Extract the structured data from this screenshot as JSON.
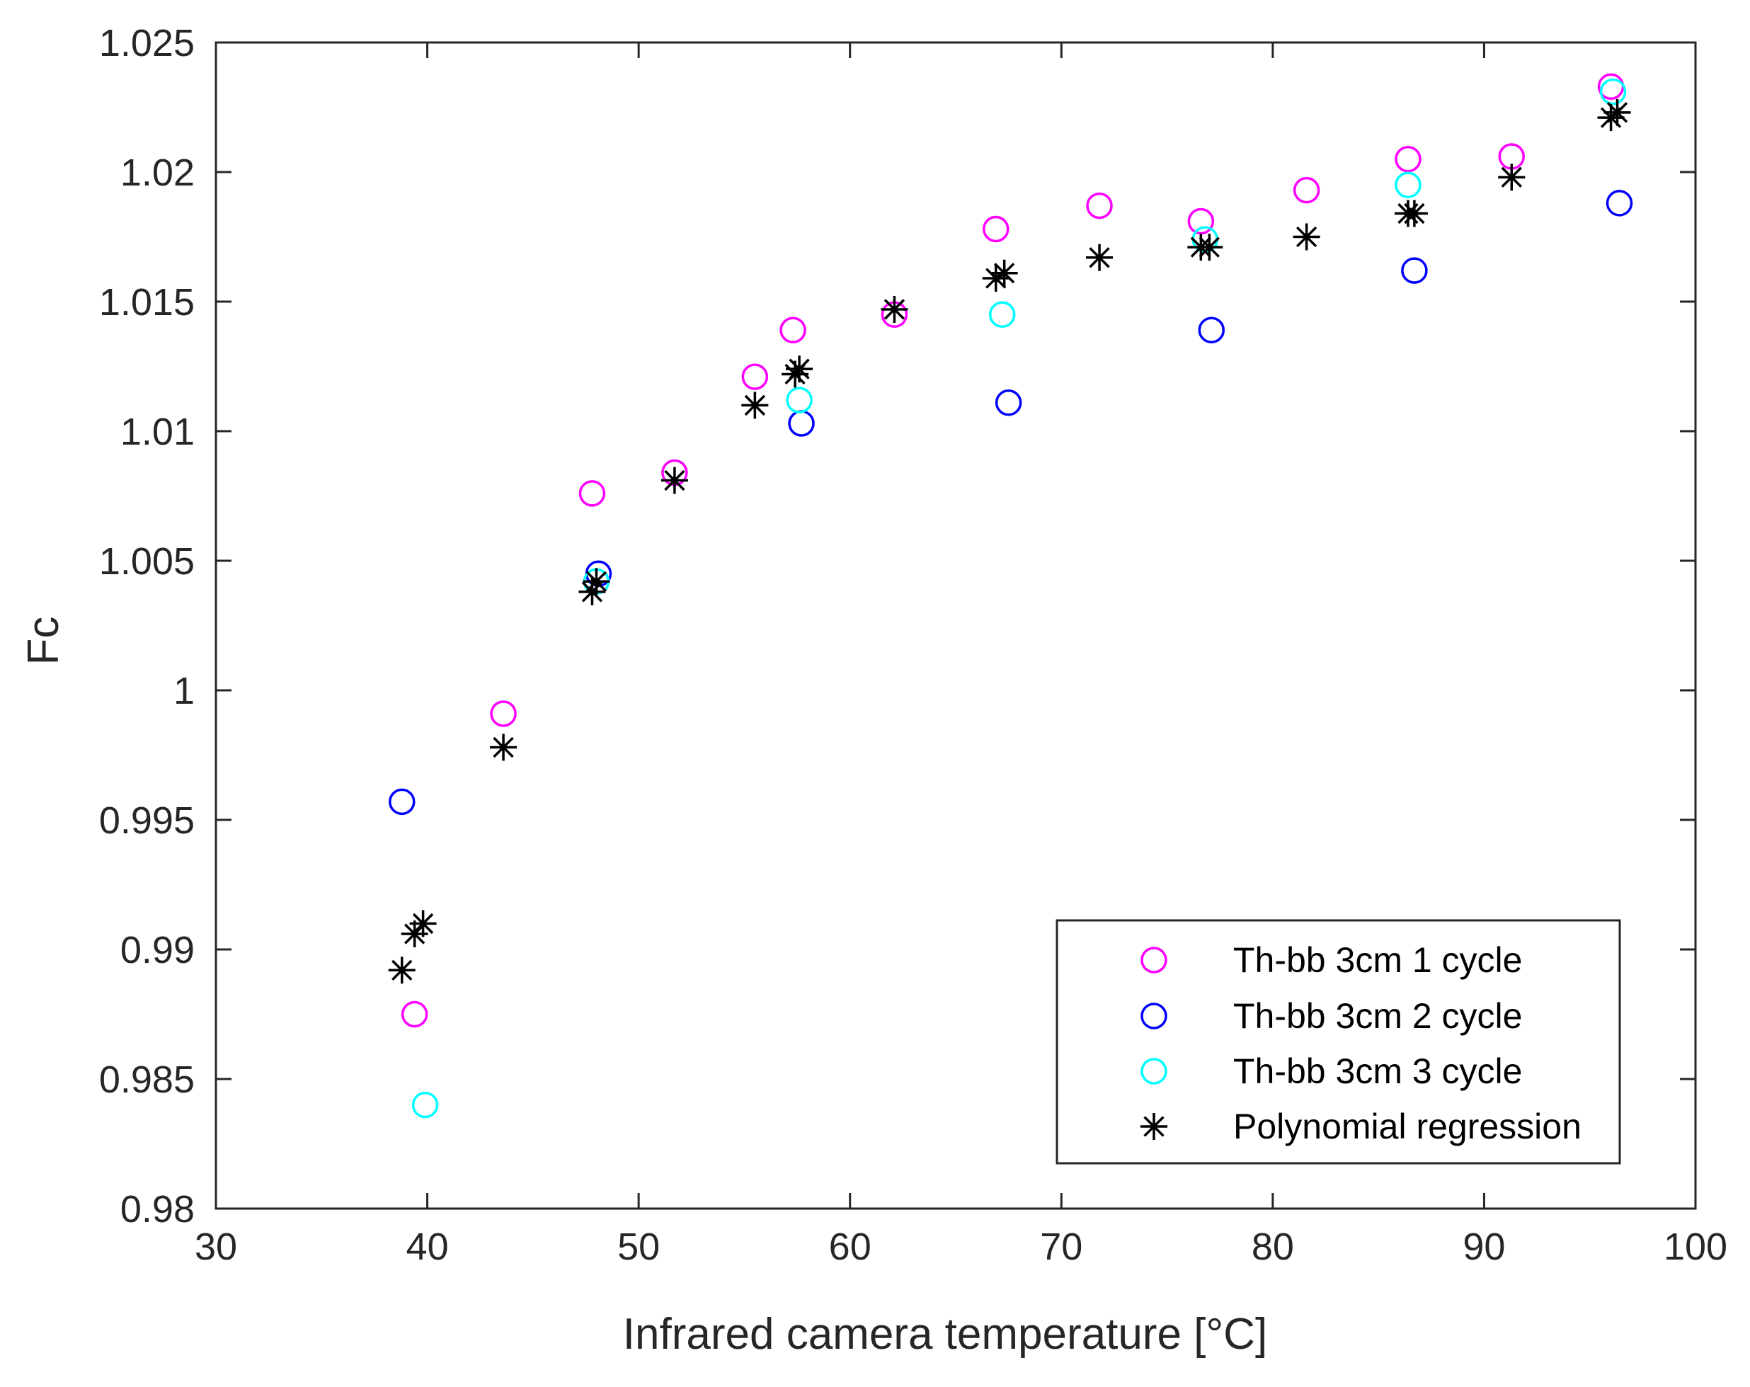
{
  "chart_data": {
    "type": "scatter",
    "xlabel": "Infrared camera temperature [°C]",
    "ylabel": "Fc",
    "xlim": [
      30,
      100
    ],
    "ylim": [
      0.98,
      1.025
    ],
    "xticks": [
      30,
      40,
      50,
      60,
      70,
      80,
      90,
      100
    ],
    "xtick_labels": [
      "30",
      "40",
      "50",
      "60",
      "70",
      "80",
      "90",
      "100"
    ],
    "yticks": [
      0.98,
      0.985,
      0.99,
      0.995,
      1.0,
      1.005,
      1.01,
      1.015,
      1.02,
      1.025
    ],
    "ytick_labels": [
      "0.98",
      "0.985",
      "0.99",
      "0.995",
      "1",
      "1.005",
      "1.01",
      "1.015",
      "1.02",
      "1.025"
    ],
    "grid": false,
    "legend_position": "bottom-right",
    "series": [
      {
        "name": "Th-bb 3cm 1 cycle",
        "marker": "circle",
        "color": "#ff00ff",
        "x": [
          39.4,
          43.6,
          47.8,
          51.7,
          55.5,
          57.3,
          62.1,
          66.9,
          71.8,
          76.6,
          81.6,
          86.4,
          91.3,
          96.0
        ],
        "y": [
          0.9875,
          0.9991,
          1.0076,
          1.0084,
          1.0121,
          1.0139,
          1.0145,
          1.0178,
          1.0187,
          1.0181,
          1.0193,
          1.0205,
          1.0206,
          1.0233
        ]
      },
      {
        "name": "Th-bb 3cm 2 cycle",
        "marker": "circle",
        "color": "#0000ff",
        "x": [
          38.8,
          48.1,
          57.7,
          67.5,
          77.1,
          86.7,
          96.4
        ],
        "y": [
          0.9957,
          1.0045,
          1.0103,
          1.0111,
          1.0139,
          1.0162,
          1.0188
        ]
      },
      {
        "name": "Th-bb 3cm 3 cycle",
        "marker": "circle",
        "color": "#00ffff",
        "x": [
          39.9,
          48.0,
          57.6,
          67.2,
          76.8,
          86.4,
          96.1
        ],
        "y": [
          0.984,
          1.0042,
          1.0112,
          1.0145,
          1.0174,
          1.0195,
          1.0231
        ]
      },
      {
        "name": "Polynomial regression",
        "marker": "asterisk",
        "color": "#000000",
        "x": [
          38.8,
          39.4,
          39.8,
          43.6,
          47.8,
          48.0,
          51.7,
          55.5,
          57.4,
          57.6,
          62.1,
          66.9,
          67.3,
          71.8,
          76.6,
          77.0,
          81.6,
          86.4,
          86.7,
          91.3,
          96.0,
          96.3
        ],
        "y": [
          0.9892,
          0.9906,
          0.991,
          0.9978,
          1.0038,
          1.0042,
          1.0081,
          1.011,
          1.0122,
          1.0124,
          1.0147,
          1.0159,
          1.0161,
          1.0167,
          1.0171,
          1.0171,
          1.0175,
          1.0184,
          1.0184,
          1.0198,
          1.0221,
          1.0223
        ]
      }
    ]
  }
}
